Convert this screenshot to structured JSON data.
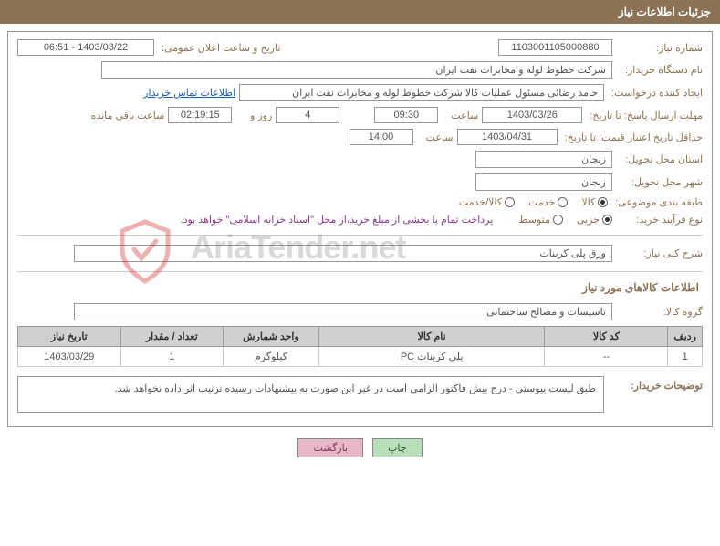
{
  "header": {
    "title": "جزئیات اطلاعات نیاز"
  },
  "fields": {
    "need_number_label": "شماره نیاز:",
    "need_number": "1103001105000880",
    "announce_date_label": "تاریخ و ساعت اعلان عمومی:",
    "announce_date": "1403/03/22 - 06:51",
    "buyer_org_label": "نام دستگاه خریدار:",
    "buyer_org": "شرکت خطوط لوله و مخابرات نفت ایران",
    "requester_label": "ایجاد کننده درخواست:",
    "requester": "حامد  رضائی  مسئول عملیات کالا  شرکت خطوط لوله و مخابرات نفت ایران",
    "buyer_contact_link": "اطلاعات تماس خریدار",
    "response_deadline_label": "مهلت ارسال پاسخ: تا تاریخ:",
    "response_date": "1403/03/26",
    "time_label": "ساعت",
    "response_time": "09:30",
    "days_value": "4",
    "days_and": "روز و",
    "remaining_time": "02:19:15",
    "remaining_label": "ساعت باقی مانده",
    "validity_label": "حداقل تاریخ اعتبار قیمت: تا تاریخ:",
    "validity_date": "1403/04/31",
    "validity_time": "14:00",
    "province_label": "استان محل تحویل:",
    "province": "زنجان",
    "city_label": "شهر محل تحویل:",
    "city": "زنجان",
    "category_label": "طبقه بندی موضوعی:",
    "cat_goods": "کالا",
    "cat_service": "خدمت",
    "cat_both": "کالا/خدمت",
    "process_label": "نوع فرآیند خرید:",
    "proc_small": "جزیی",
    "proc_medium": "متوسط",
    "payment_note": "پرداخت تمام یا بخشی از مبلغ خرید،از محل \"اسناد خزانه اسلامی\" خواهد بود.",
    "need_desc_label": "شرح کلی نیاز:",
    "need_desc": "ورق پلی کربنات",
    "goods_info_title": "اطلاعات کالاهای مورد نیاز",
    "goods_group_label": "گروه کالا:",
    "goods_group": "تاسیسات و مصالح ساختمانی",
    "buyer_notes_label": "توضیحات خریدار:",
    "buyer_notes": "طبق لیست پیوستی - درج پیش فاکتور الزامی است در غیر این صورت به پیشنهادات رسیده ترتیب اثر داده نخواهد شد."
  },
  "radio_state": {
    "category_selected": "goods",
    "process_selected": "small"
  },
  "table": {
    "columns": [
      "ردیف",
      "کد کالا",
      "نام کالا",
      "واحد شمارش",
      "تعداد / مقدار",
      "تاریخ نیاز"
    ],
    "rows": [
      {
        "row_num": "1",
        "code": "--",
        "name": "پلی کربنات PC",
        "unit": "کیلوگرم",
        "qty": "1",
        "date": "1403/03/29"
      }
    ],
    "col_widths": {
      "row_num": "5%",
      "code": "18%",
      "name": "33%",
      "unit": "14%",
      "qty": "15%",
      "date": "15%"
    }
  },
  "buttons": {
    "print": "چاپ",
    "back": "بازگشت"
  },
  "watermark": {
    "text": "AriaTender.net",
    "logo_color_outer": "rgba(210,50,50,0.38)",
    "logo_color_inner": "rgba(210,50,50,0.38)"
  },
  "colors": {
    "header_bg": "#8b7355",
    "label_color": "#8b7355",
    "link_color": "#1a5fb4",
    "border": "#999",
    "table_header_bg": "#d0d0d0"
  }
}
